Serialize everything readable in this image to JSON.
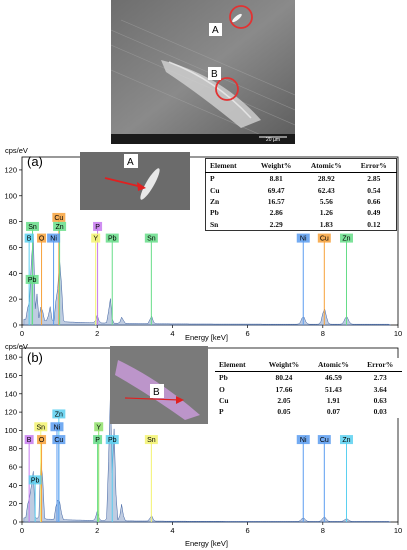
{
  "sem_top": {
    "label_a": "A",
    "label_b": "B",
    "scale_text": "20 µm",
    "marker_color": "#e23232"
  },
  "chart_data": [
    {
      "type": "line",
      "panel_label": "(a)",
      "ylabel": "cps/eV",
      "xlabel": "Energy [keV]",
      "xlim": [
        0,
        10
      ],
      "ylim": [
        0,
        130
      ],
      "yticks": [
        0,
        20,
        40,
        60,
        80,
        100,
        120
      ],
      "xticks": [
        0,
        2,
        4,
        6,
        8,
        10
      ],
      "inset_label": "A",
      "peaks": [
        {
          "x": 0.18,
          "y": 18
        },
        {
          "x": 0.28,
          "y": 90
        },
        {
          "x": 0.39,
          "y": 22
        },
        {
          "x": 0.52,
          "y": 14
        },
        {
          "x": 0.74,
          "y": 12
        },
        {
          "x": 0.93,
          "y": 28
        },
        {
          "x": 1.01,
          "y": 38
        },
        {
          "x": 1.03,
          "y": 20
        },
        {
          "x": 2.0,
          "y": 6
        },
        {
          "x": 2.34,
          "y": 20
        },
        {
          "x": 2.66,
          "y": 5
        },
        {
          "x": 3.44,
          "y": 6
        },
        {
          "x": 7.48,
          "y": 6
        },
        {
          "x": 8.04,
          "y": 12
        },
        {
          "x": 8.63,
          "y": 6
        }
      ],
      "element_tags": [
        {
          "label": "Sn",
          "x": 0.28,
          "y": 72,
          "color": "#66dd88"
        },
        {
          "label": "Cu",
          "x": 0.98,
          "y": 79,
          "color": "#f7a13a"
        },
        {
          "label": "Zn",
          "x": 1.0,
          "y": 72,
          "color": "#66dd88"
        },
        {
          "label": "B",
          "x": 0.19,
          "y": 63,
          "color": "#5bd0f0"
        },
        {
          "label": "O",
          "x": 0.52,
          "y": 63,
          "color": "#f7a13a"
        },
        {
          "label": "Ni",
          "x": 0.84,
          "y": 63,
          "color": "#5b9cf0"
        },
        {
          "label": "Pb",
          "x": 0.27,
          "y": 31,
          "color": "#66dd88"
        },
        {
          "label": "P",
          "x": 2.01,
          "y": 72,
          "color": "#c77af0"
        },
        {
          "label": "Y",
          "x": 1.96,
          "y": 63,
          "color": "#f3f36e"
        },
        {
          "label": "Pb",
          "x": 2.4,
          "y": 63,
          "color": "#66dd88"
        },
        {
          "label": "Sn",
          "x": 3.44,
          "y": 63,
          "color": "#66dd88"
        },
        {
          "label": "Ni",
          "x": 7.48,
          "y": 63,
          "color": "#5b9cf0"
        },
        {
          "label": "Cu",
          "x": 8.04,
          "y": 63,
          "color": "#f7a13a"
        },
        {
          "label": "Zn",
          "x": 8.63,
          "y": 63,
          "color": "#66dd88"
        }
      ],
      "table": {
        "headers": [
          "Element",
          "Weight%",
          "Atomic%",
          "Error%"
        ],
        "rows": [
          [
            "P",
            "8.81",
            "28.92",
            "2.85"
          ],
          [
            "Cu",
            "69.47",
            "62.43",
            "0.54"
          ],
          [
            "Zn",
            "16.57",
            "5.56",
            "0.66"
          ],
          [
            "Pb",
            "2.86",
            "1.26",
            "0.49"
          ],
          [
            "Sn",
            "2.29",
            "1.83",
            "0.12"
          ]
        ]
      }
    },
    {
      "type": "line",
      "panel_label": "(b)",
      "ylabel": "cps/eV",
      "xlabel": "Energy [keV]",
      "xlim": [
        0,
        10
      ],
      "ylim": [
        0,
        190
      ],
      "yticks": [
        0,
        20,
        40,
        60,
        80,
        100,
        120,
        140,
        160,
        180
      ],
      "xticks": [
        0,
        2,
        4,
        6,
        8,
        10
      ],
      "inset_label": "B",
      "peaks": [
        {
          "x": 0.18,
          "y": 30
        },
        {
          "x": 0.28,
          "y": 70
        },
        {
          "x": 0.52,
          "y": 85
        },
        {
          "x": 0.93,
          "y": 25
        },
        {
          "x": 1.01,
          "y": 20
        },
        {
          "x": 2.0,
          "y": 10
        },
        {
          "x": 2.34,
          "y": 145
        },
        {
          "x": 2.45,
          "y": 100
        },
        {
          "x": 2.65,
          "y": 18
        },
        {
          "x": 3.44,
          "y": 6
        },
        {
          "x": 7.48,
          "y": 4
        },
        {
          "x": 8.04,
          "y": 5
        },
        {
          "x": 8.63,
          "y": 3
        }
      ],
      "element_tags": [
        {
          "label": "Zn",
          "x": 0.98,
          "y": 112,
          "color": "#5bd0f0"
        },
        {
          "label": "Sn",
          "x": 0.5,
          "y": 98,
          "color": "#f3f36e"
        },
        {
          "label": "Ni",
          "x": 0.93,
          "y": 98,
          "color": "#5b9cf0"
        },
        {
          "label": "Y",
          "x": 2.04,
          "y": 98,
          "color": "#8fe06a"
        },
        {
          "label": "B",
          "x": 0.19,
          "y": 84,
          "color": "#c77af0"
        },
        {
          "label": "O",
          "x": 0.52,
          "y": 84,
          "color": "#f7a13a"
        },
        {
          "label": "Cu",
          "x": 0.98,
          "y": 84,
          "color": "#5b9cf0"
        },
        {
          "label": "P",
          "x": 2.01,
          "y": 84,
          "color": "#66dd88"
        },
        {
          "label": "Pb",
          "x": 2.4,
          "y": 84,
          "color": "#5bd0f0"
        },
        {
          "label": "Sn",
          "x": 3.44,
          "y": 84,
          "color": "#f3f36e"
        },
        {
          "label": "Pb",
          "x": 0.35,
          "y": 40,
          "color": "#5bd0f0"
        },
        {
          "label": "Ni",
          "x": 7.48,
          "y": 84,
          "color": "#5b9cf0"
        },
        {
          "label": "Cu",
          "x": 8.04,
          "y": 84,
          "color": "#5b9cf0"
        },
        {
          "label": "Zn",
          "x": 8.63,
          "y": 84,
          "color": "#5bd0f0"
        }
      ],
      "table": {
        "headers": [
          "Element",
          "Weight%",
          "Atomic%",
          "Error%"
        ],
        "rows": [
          [
            "Pb",
            "80.24",
            "46.59",
            "2.73"
          ],
          [
            "O",
            "17.66",
            "51.43",
            "3.64"
          ],
          [
            "Cu",
            "2.05",
            "1.91",
            "0.63"
          ],
          [
            "P",
            "0.05",
            "0.07",
            "0.03"
          ]
        ]
      }
    }
  ]
}
